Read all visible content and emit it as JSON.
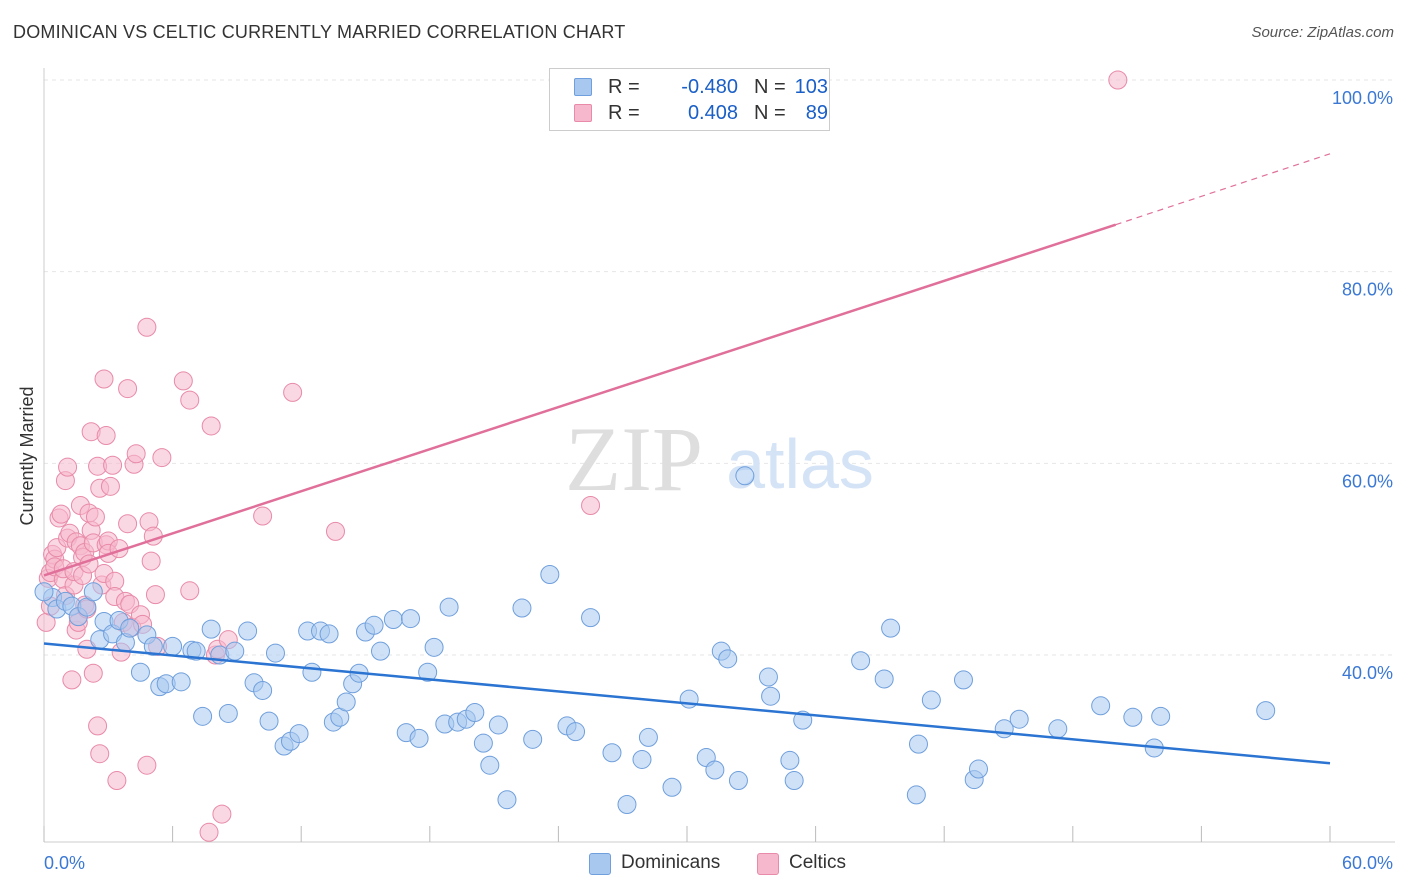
{
  "title": "DOMINICAN VS CELTIC CURRENTLY MARRIED CORRELATION CHART",
  "source": "Source: ZipAtlas.com",
  "watermark": {
    "zip": "ZIP",
    "atlas": "atlas"
  },
  "colors": {
    "dominican_fill": "#a8c8f0",
    "dominican_stroke": "#6f9fdc",
    "dominican_line": "#2b74d2",
    "celtic_fill": "#f5b8cc",
    "celtic_stroke": "#e88aa8",
    "celtic_line": "#e0709a",
    "axis_label": "#3b78d4",
    "grid": "#e6e6e6"
  },
  "legend": {
    "rows": [
      {
        "r_label": "R =",
        "r_value": "-0.480",
        "n_label": "N =",
        "n_value": "103"
      },
      {
        "r_label": "R =",
        "r_value": "0.408",
        "n_label": "N =",
        "n_value": "89"
      }
    ]
  },
  "bottom_legend": {
    "dominican": "Dominicans",
    "celtic": "Celtics"
  },
  "chart_data": {
    "type": "scatter",
    "title": "DOMINICAN VS CELTIC CURRENTLY MARRIED CORRELATION CHART",
    "xlabel": "",
    "ylabel": "Currently Married",
    "xlim": [
      0,
      60
    ],
    "ylim": [
      20,
      102
    ],
    "x_tick_labels": [
      "0.0%",
      "60.0%"
    ],
    "y_ticks": [
      40,
      60,
      80,
      100
    ],
    "y_tick_labels": [
      "40.0%",
      "60.0%",
      "80.0%",
      "100.0%"
    ],
    "grid": true,
    "series": [
      {
        "name": "Dominicans",
        "r": -0.48,
        "n": 103,
        "trend": {
          "x": [
            0,
            60
          ],
          "y": [
            41.2,
            28.7
          ]
        },
        "points": [
          [
            0.4,
            46.0
          ],
          [
            0.6,
            44.8
          ],
          [
            1.0,
            45.6
          ],
          [
            1.3,
            45.1
          ],
          [
            1.6,
            44.0
          ],
          [
            2.0,
            45.0
          ],
          [
            2.3,
            46.6
          ],
          [
            2.6,
            41.6
          ],
          [
            2.8,
            43.5
          ],
          [
            3.2,
            42.2
          ],
          [
            3.5,
            43.6
          ],
          [
            3.8,
            41.3
          ],
          [
            4.0,
            42.8
          ],
          [
            4.5,
            38.2
          ],
          [
            4.8,
            42.1
          ],
          [
            5.1,
            40.9
          ],
          [
            5.4,
            36.7
          ],
          [
            5.7,
            37.0
          ],
          [
            6.0,
            40.9
          ],
          [
            6.4,
            37.2
          ],
          [
            6.9,
            40.5
          ],
          [
            7.1,
            40.4
          ],
          [
            7.4,
            33.6
          ],
          [
            7.8,
            42.7
          ],
          [
            8.2,
            40.0
          ],
          [
            8.6,
            33.9
          ],
          [
            8.9,
            40.4
          ],
          [
            9.5,
            42.5
          ],
          [
            9.8,
            37.1
          ],
          [
            10.2,
            36.3
          ],
          [
            10.5,
            33.1
          ],
          [
            10.8,
            40.2
          ],
          [
            11.2,
            30.5
          ],
          [
            11.5,
            31.0
          ],
          [
            11.9,
            31.8
          ],
          [
            12.3,
            42.5
          ],
          [
            12.5,
            38.2
          ],
          [
            12.9,
            42.5
          ],
          [
            13.3,
            42.2
          ],
          [
            13.5,
            33.0
          ],
          [
            13.8,
            33.5
          ],
          [
            14.1,
            35.1
          ],
          [
            14.4,
            37.0
          ],
          [
            14.7,
            38.1
          ],
          [
            15.0,
            42.4
          ],
          [
            15.4,
            43.1
          ],
          [
            15.7,
            40.4
          ],
          [
            16.3,
            43.7
          ],
          [
            16.9,
            31.9
          ],
          [
            17.1,
            43.8
          ],
          [
            17.5,
            31.3
          ],
          [
            17.9,
            38.2
          ],
          [
            18.2,
            40.8
          ],
          [
            18.7,
            32.8
          ],
          [
            18.9,
            45.0
          ],
          [
            19.3,
            33.0
          ],
          [
            19.7,
            33.3
          ],
          [
            20.1,
            34.0
          ],
          [
            20.5,
            30.8
          ],
          [
            20.8,
            28.5
          ],
          [
            21.2,
            32.7
          ],
          [
            21.6,
            24.9
          ],
          [
            22.3,
            44.9
          ],
          [
            22.8,
            31.2
          ],
          [
            23.6,
            48.4
          ],
          [
            24.4,
            32.6
          ],
          [
            24.8,
            32.0
          ],
          [
            25.5,
            43.9
          ],
          [
            26.5,
            29.8
          ],
          [
            27.2,
            24.4
          ],
          [
            27.9,
            29.1
          ],
          [
            28.2,
            31.4
          ],
          [
            29.3,
            26.2
          ],
          [
            30.1,
            35.4
          ],
          [
            30.9,
            29.3
          ],
          [
            31.3,
            28.0
          ],
          [
            31.6,
            40.4
          ],
          [
            31.9,
            39.6
          ],
          [
            32.4,
            26.9
          ],
          [
            32.7,
            58.7
          ],
          [
            33.8,
            37.7
          ],
          [
            33.9,
            35.7
          ],
          [
            34.8,
            29.0
          ],
          [
            35.0,
            26.9
          ],
          [
            35.4,
            33.2
          ],
          [
            38.1,
            39.4
          ],
          [
            39.2,
            37.5
          ],
          [
            39.5,
            42.8
          ],
          [
            40.7,
            25.4
          ],
          [
            40.8,
            30.7
          ],
          [
            41.4,
            35.3
          ],
          [
            42.9,
            37.4
          ],
          [
            43.4,
            27.0
          ],
          [
            43.6,
            28.1
          ],
          [
            44.8,
            32.3
          ],
          [
            45.5,
            33.3
          ],
          [
            47.3,
            32.3
          ],
          [
            49.3,
            34.7
          ],
          [
            50.8,
            33.5
          ],
          [
            51.8,
            30.3
          ],
          [
            52.1,
            33.6
          ],
          [
            57.0,
            34.2
          ],
          [
            0.0,
            46.6
          ]
        ]
      },
      {
        "name": "Celtics",
        "r": 0.408,
        "n": 89,
        "trend": {
          "x": [
            0,
            50
          ],
          "y": [
            48.3,
            84.9
          ]
        },
        "trend_dashed": {
          "x": [
            50,
            60
          ],
          "y": [
            84.9,
            92.3
          ]
        },
        "points": [
          [
            0.1,
            43.4
          ],
          [
            0.2,
            48.0
          ],
          [
            0.3,
            48.6
          ],
          [
            0.4,
            50.5
          ],
          [
            0.5,
            50.0
          ],
          [
            0.5,
            49.2
          ],
          [
            0.6,
            51.2
          ],
          [
            0.7,
            54.3
          ],
          [
            0.8,
            54.7
          ],
          [
            0.9,
            47.9
          ],
          [
            0.9,
            49.0
          ],
          [
            1.0,
            58.2
          ],
          [
            1.0,
            46.2
          ],
          [
            1.1,
            59.6
          ],
          [
            1.1,
            52.2
          ],
          [
            1.2,
            52.7
          ],
          [
            1.3,
            37.4
          ],
          [
            1.4,
            47.3
          ],
          [
            1.4,
            48.7
          ],
          [
            1.5,
            51.8
          ],
          [
            1.5,
            42.6
          ],
          [
            1.6,
            44.0
          ],
          [
            1.6,
            43.4
          ],
          [
            1.7,
            55.6
          ],
          [
            1.7,
            51.4
          ],
          [
            1.8,
            50.2
          ],
          [
            1.8,
            48.3
          ],
          [
            1.9,
            45.2
          ],
          [
            1.9,
            50.7
          ],
          [
            2.0,
            44.8
          ],
          [
            2.0,
            40.6
          ],
          [
            2.1,
            54.8
          ],
          [
            2.1,
            49.5
          ],
          [
            2.2,
            63.3
          ],
          [
            2.2,
            53.0
          ],
          [
            2.3,
            38.1
          ],
          [
            2.3,
            51.7
          ],
          [
            2.4,
            54.4
          ],
          [
            2.5,
            59.7
          ],
          [
            2.5,
            32.6
          ],
          [
            2.6,
            29.7
          ],
          [
            2.6,
            57.4
          ],
          [
            2.7,
            47.3
          ],
          [
            2.8,
            68.8
          ],
          [
            2.8,
            48.5
          ],
          [
            2.9,
            62.9
          ],
          [
            2.9,
            51.5
          ],
          [
            3.0,
            51.9
          ],
          [
            3.0,
            50.6
          ],
          [
            3.1,
            57.6
          ],
          [
            3.2,
            59.8
          ],
          [
            3.3,
            47.7
          ],
          [
            3.3,
            46.1
          ],
          [
            3.4,
            26.9
          ],
          [
            3.5,
            51.1
          ],
          [
            3.6,
            40.3
          ],
          [
            3.7,
            43.4
          ],
          [
            3.8,
            45.6
          ],
          [
            3.9,
            67.8
          ],
          [
            3.9,
            53.7
          ],
          [
            4.0,
            45.3
          ],
          [
            4.1,
            42.9
          ],
          [
            4.2,
            59.9
          ],
          [
            4.3,
            61.0
          ],
          [
            4.5,
            44.2
          ],
          [
            4.6,
            43.2
          ],
          [
            4.8,
            74.2
          ],
          [
            4.8,
            28.5
          ],
          [
            4.9,
            53.9
          ],
          [
            5.0,
            49.8
          ],
          [
            5.1,
            52.4
          ],
          [
            5.2,
            46.3
          ],
          [
            5.3,
            40.9
          ],
          [
            5.5,
            60.6
          ],
          [
            6.5,
            68.6
          ],
          [
            6.8,
            46.7
          ],
          [
            6.8,
            66.6
          ],
          [
            7.7,
            21.5
          ],
          [
            7.8,
            63.9
          ],
          [
            8.0,
            40.0
          ],
          [
            8.1,
            40.6
          ],
          [
            8.3,
            23.4
          ],
          [
            8.6,
            41.6
          ],
          [
            10.2,
            54.5
          ],
          [
            11.6,
            67.4
          ],
          [
            13.6,
            52.9
          ],
          [
            25.5,
            55.6
          ],
          [
            50.1,
            100.0
          ],
          [
            0.3,
            45.1
          ]
        ]
      }
    ]
  }
}
